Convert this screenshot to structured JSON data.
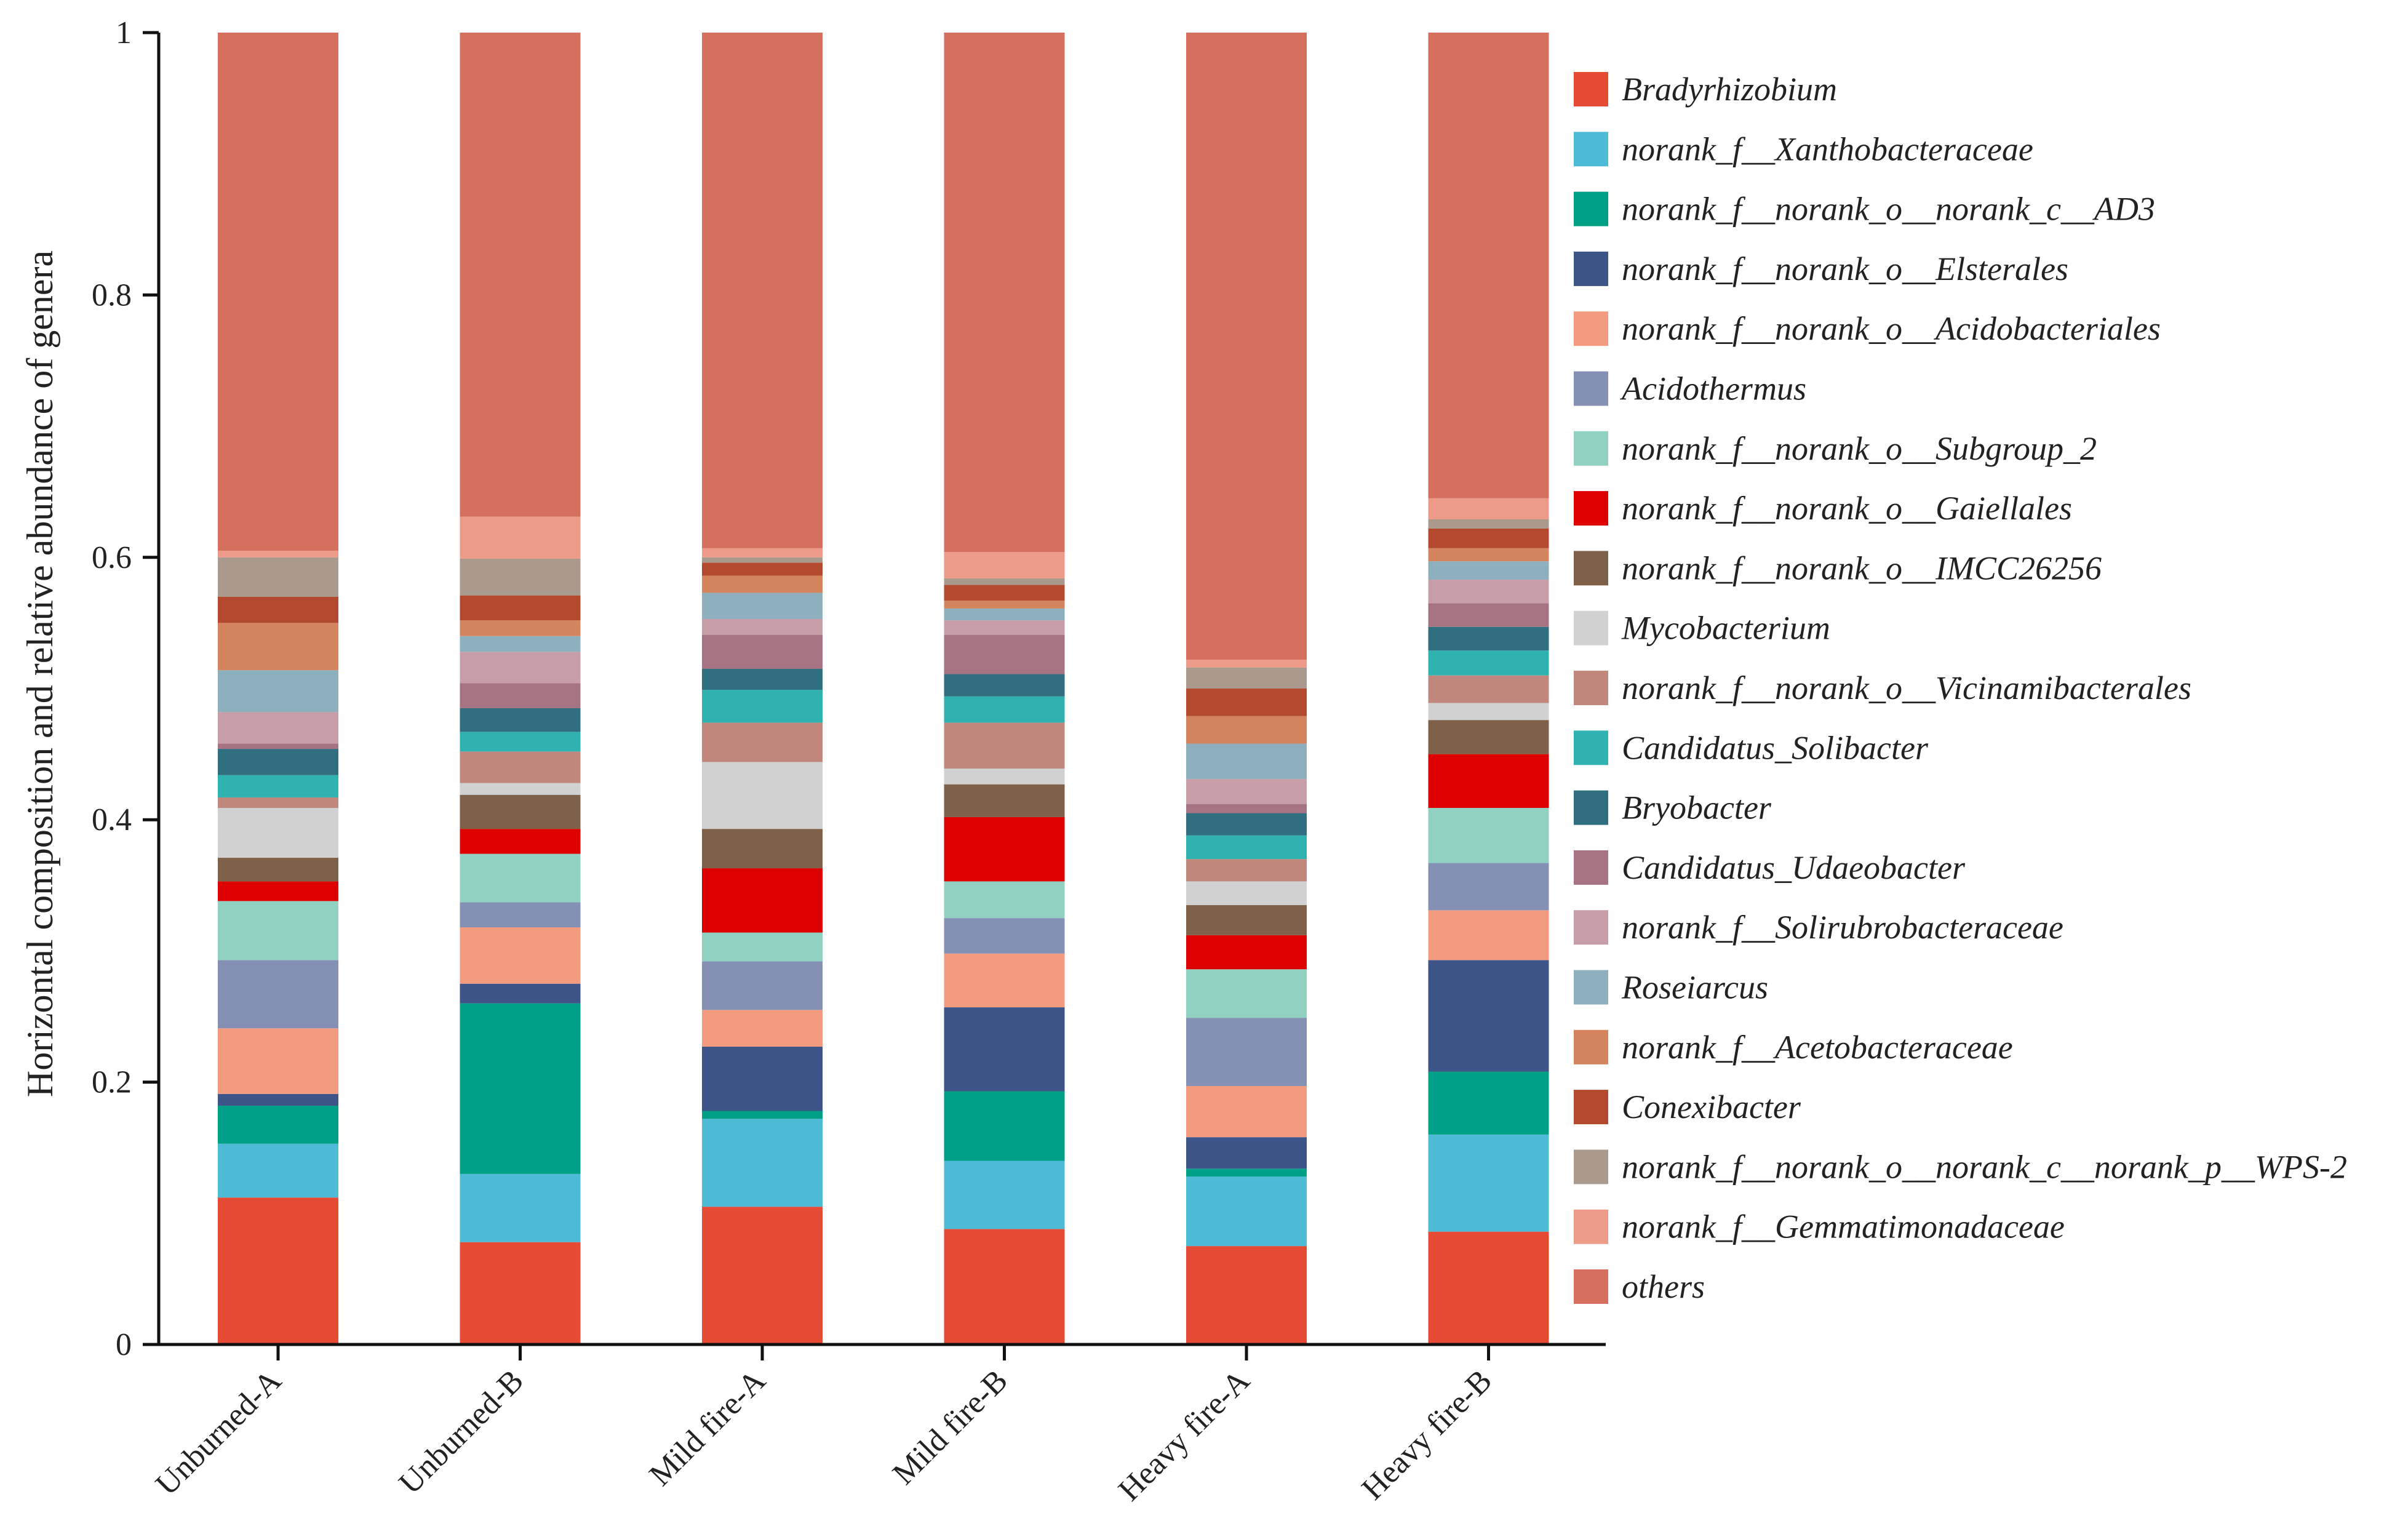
{
  "chart_data": {
    "type": "bar",
    "stacked": true,
    "title": "",
    "xlabel": "",
    "ylabel": "Horizontal composition and relative abundance of genera",
    "ylim": [
      0,
      1
    ],
    "yticks": [
      "0",
      "0.2",
      "0.4",
      "0.6",
      "0.8",
      "1"
    ],
    "yticks_values": [
      0,
      0.2,
      0.4,
      0.6,
      0.8,
      1
    ],
    "legend_position": "right",
    "categories": [
      "Unburned-A",
      "Unburned-B",
      "Mild fire-A",
      "Mild fire-B",
      "Heavy fire-A",
      "Heavy fire-B"
    ],
    "series": [
      {
        "name": "Bradyrhizobium",
        "color": "#E64B35",
        "values": [
          0.112,
          0.078,
          0.105,
          0.088,
          0.075,
          0.086
        ]
      },
      {
        "name": "norank_f__Xanthobacteraceae",
        "color": "#4DBBD5",
        "values": [
          0.041,
          0.052,
          0.067,
          0.052,
          0.053,
          0.074
        ]
      },
      {
        "name": "norank_f__norank_o__norank_c__AD3",
        "color": "#00A087",
        "values": [
          0.029,
          0.13,
          0.006,
          0.053,
          0.006,
          0.048
        ]
      },
      {
        "name": "norank_f__norank_o__Elsterales",
        "color": "#3C5488",
        "values": [
          0.009,
          0.015,
          0.049,
          0.064,
          0.024,
          0.085
        ]
      },
      {
        "name": "norank_f__norank_o__Acidobacteriales",
        "color": "#F39B7F",
        "values": [
          0.05,
          0.043,
          0.028,
          0.041,
          0.039,
          0.038
        ]
      },
      {
        "name": "Acidothermus",
        "color": "#8491B4",
        "values": [
          0.052,
          0.019,
          0.037,
          0.027,
          0.052,
          0.036
        ]
      },
      {
        "name": "norank_f__norank_o__Subgroup_2",
        "color": "#91D1C2",
        "values": [
          0.045,
          0.037,
          0.022,
          0.028,
          0.037,
          0.042
        ]
      },
      {
        "name": "norank_f__norank_o__Gaiellales",
        "color": "#DC0000",
        "values": [
          0.015,
          0.019,
          0.049,
          0.049,
          0.026,
          0.041
        ]
      },
      {
        "name": "norank_f__norank_o__IMCC26256",
        "color": "#7E6148",
        "values": [
          0.018,
          0.026,
          0.03,
          0.025,
          0.023,
          0.026
        ]
      },
      {
        "name": "Mycobacterium",
        "color": "#D1D1D1",
        "values": [
          0.038,
          0.009,
          0.051,
          0.012,
          0.018,
          0.013
        ]
      },
      {
        "name": "norank_f__norank_o__Vicinamibacterales",
        "color": "#C2877C",
        "values": [
          0.008,
          0.024,
          0.03,
          0.035,
          0.017,
          0.021
        ]
      },
      {
        "name": "Candidatus_Solibacter",
        "color": "#2FB2B0",
        "values": [
          0.017,
          0.015,
          0.025,
          0.02,
          0.018,
          0.019
        ]
      },
      {
        "name": "Bryobacter",
        "color": "#2F6F80",
        "values": [
          0.02,
          0.018,
          0.016,
          0.017,
          0.017,
          0.018
        ]
      },
      {
        "name": "Candidatus_Udaeobacter",
        "color": "#A57382",
        "values": [
          0.004,
          0.019,
          0.026,
          0.03,
          0.007,
          0.018
        ]
      },
      {
        "name": "norank_f__Solirubrobacteraceae",
        "color": "#C79EA7",
        "values": [
          0.024,
          0.024,
          0.012,
          0.011,
          0.019,
          0.018
        ]
      },
      {
        "name": "Roseiarcus",
        "color": "#8DAFBE",
        "values": [
          0.032,
          0.012,
          0.02,
          0.009,
          0.027,
          0.014
        ]
      },
      {
        "name": "norank_f__Acetobacteraceae",
        "color": "#D5855E",
        "values": [
          0.036,
          0.012,
          0.013,
          0.006,
          0.021,
          0.01
        ]
      },
      {
        "name": "Conexibacter",
        "color": "#B34A2E",
        "values": [
          0.02,
          0.019,
          0.01,
          0.012,
          0.021,
          0.015
        ]
      },
      {
        "name": "norank_f__norank_o__norank_c__norank_p__WPS-2",
        "color": "#A99A8D",
        "values": [
          0.03,
          0.028,
          0.004,
          0.005,
          0.016,
          0.007
        ]
      },
      {
        "name": "norank_f__Gemmatimonadaceae",
        "color": "#EE9A89",
        "values": [
          0.005,
          0.032,
          0.007,
          0.02,
          0.006,
          0.016
        ]
      },
      {
        "name": "others",
        "color": "#D6705E",
        "values": [
          0.395,
          0.369,
          0.393,
          0.396,
          0.478,
          0.355
        ]
      }
    ]
  }
}
